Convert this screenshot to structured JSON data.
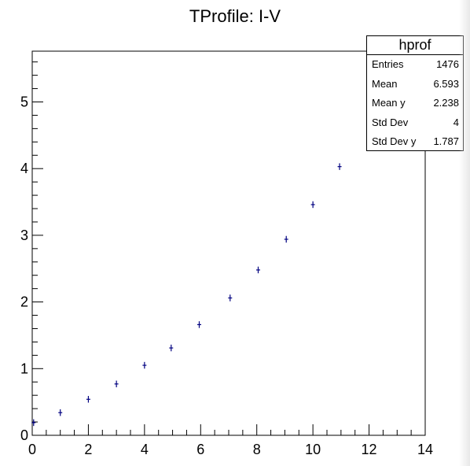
{
  "chart_data": {
    "type": "scatter",
    "title": "TProfile: I-V",
    "xlabel": "",
    "ylabel": "",
    "xlim": [
      0,
      14
    ],
    "ylim": [
      0,
      5.75
    ],
    "x_ticks": [
      "0",
      "2",
      "4",
      "6",
      "8",
      "10",
      "12",
      "14"
    ],
    "y_ticks": [
      "0",
      "1",
      "2",
      "3",
      "4",
      "5"
    ],
    "grid": false,
    "marker_color": "#000080",
    "series": [
      {
        "x": [
          0.05,
          1,
          2,
          3,
          4,
          4.95,
          5.95,
          7.05,
          8.05,
          9.05,
          10,
          10.95
        ],
        "y": [
          0.19,
          0.34,
          0.54,
          0.77,
          1.05,
          1.31,
          1.66,
          2.06,
          2.48,
          2.94,
          3.46,
          4.03
        ],
        "yerr": [
          0.05,
          0.05,
          0.05,
          0.05,
          0.05,
          0.05,
          0.05,
          0.05,
          0.05,
          0.05,
          0.05,
          0.05
        ]
      }
    ],
    "stats_box": {
      "name": "hprof",
      "rows": [
        {
          "label": "Entries",
          "value": "1476"
        },
        {
          "label": "Mean",
          "value": "6.593"
        },
        {
          "label": "Mean y",
          "value": "2.238"
        },
        {
          "label": "Std Dev",
          "value": "4"
        },
        {
          "label": "Std Dev y",
          "value": "1.787"
        }
      ]
    }
  }
}
